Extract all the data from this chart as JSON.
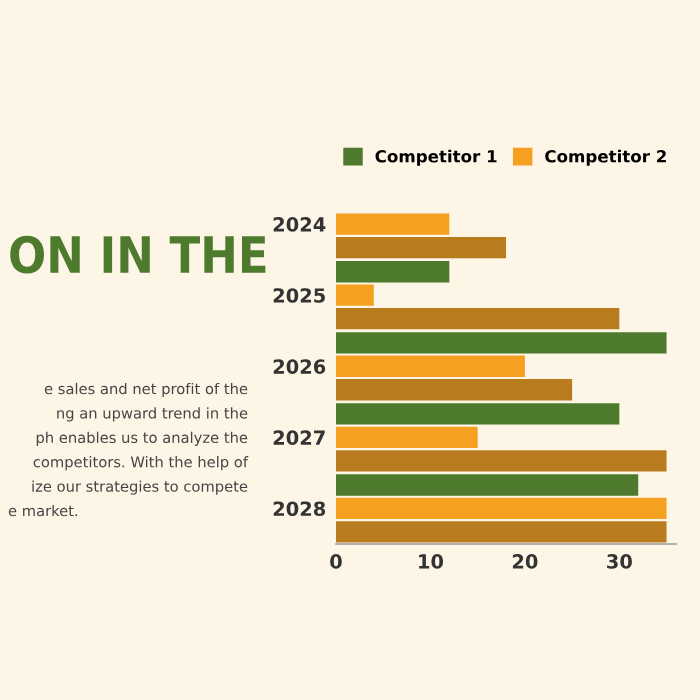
{
  "chart_data": {
    "type": "bar",
    "orientation": "horizontal",
    "title": "ON IN THE",
    "annotations": [
      "e sales and net profit of the",
      "ng an upward trend in the",
      "ph enables us to analyze the",
      "competitors. With the help of",
      "ize our strategies to compete",
      "e market."
    ],
    "categories": [
      "2024",
      "2025",
      "2026",
      "2027",
      "2028"
    ],
    "series": [
      {
        "name": "Competitor 1",
        "color": "#4e7a2e",
        "values": [
          null,
          12,
          35,
          30,
          32
        ]
      },
      {
        "name": "Competitor 2",
        "color": "#f5a020",
        "values": [
          12,
          4,
          20,
          15,
          35
        ]
      },
      {
        "color": "#b87c1e",
        "values": [
          18,
          30,
          25,
          35,
          35
        ]
      }
    ],
    "xlim": [
      0,
      36
    ],
    "xticks": [
      0,
      10,
      20,
      30
    ],
    "grid": false,
    "legend": "top"
  }
}
